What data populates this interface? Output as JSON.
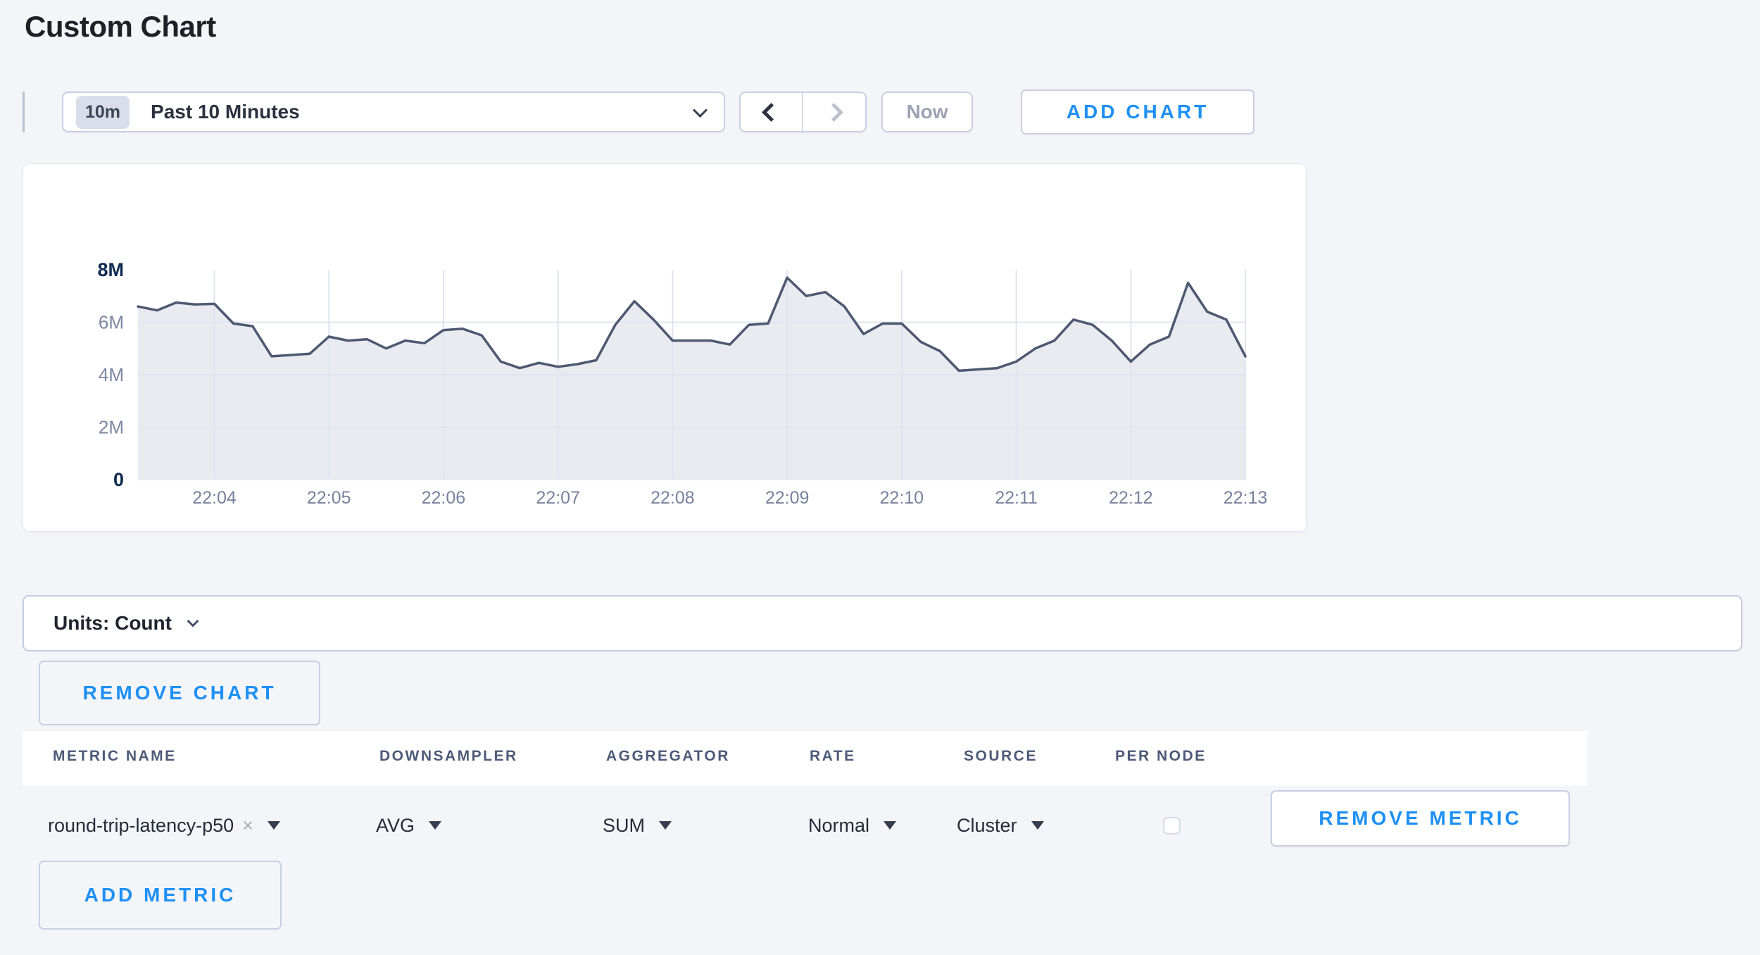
{
  "page": {
    "title": "Custom Chart"
  },
  "toolbar": {
    "time_window_badge": "10m",
    "time_window_label": "Past 10 Minutes",
    "now_label": "Now",
    "add_chart_label": "ADD CHART"
  },
  "chart_data": {
    "type": "area",
    "title": "",
    "xlabel": "",
    "ylabel": "",
    "unit": "Count",
    "ylim": [
      0,
      8000000
    ],
    "grid": true,
    "legend": "none",
    "x_labels": [
      "22:04",
      "22:05",
      "22:06",
      "22:07",
      "22:08",
      "22:09",
      "22:10",
      "22:11",
      "22:12",
      "22:13"
    ],
    "x_tick_indices": [
      4,
      10,
      16,
      22,
      28,
      34,
      40,
      46,
      52,
      58
    ],
    "y_ticks": [
      {
        "label": "0",
        "value": 0,
        "strong": true,
        "gridline": false
      },
      {
        "label": "2M",
        "value": 2,
        "strong": false,
        "gridline": true
      },
      {
        "label": "4M",
        "value": 4,
        "strong": false,
        "gridline": true
      },
      {
        "label": "6M",
        "value": 6,
        "strong": false,
        "gridline": true
      },
      {
        "label": "8M",
        "value": 8,
        "strong": true,
        "gridline": false
      }
    ],
    "series": [
      {
        "name": "round-trip-latency-p50",
        "values_millions": [
          6.6,
          6.45,
          6.75,
          6.68,
          6.7,
          5.95,
          5.85,
          4.7,
          4.75,
          4.8,
          5.45,
          5.3,
          5.35,
          5.0,
          5.3,
          5.2,
          5.7,
          5.75,
          5.5,
          4.5,
          4.25,
          4.45,
          4.3,
          4.4,
          4.55,
          5.9,
          6.8,
          6.1,
          5.3,
          5.3,
          5.3,
          5.15,
          5.9,
          5.95,
          7.7,
          7.0,
          7.15,
          6.6,
          5.55,
          5.95,
          5.95,
          5.25,
          4.9,
          4.15,
          4.2,
          4.25,
          4.5,
          5.0,
          5.3,
          6.1,
          5.9,
          5.3,
          4.5,
          5.15,
          5.45,
          7.5,
          6.4,
          6.1,
          4.7
        ]
      }
    ],
    "line_color": "#4d5971",
    "fill_color": "#e9ebf1",
    "grid_color": "#dfe4ef",
    "baseline_color": "#e8ebf3"
  },
  "units_bar": {
    "label": "Units: Count"
  },
  "chart_actions": {
    "remove_chart_label": "REMOVE CHART",
    "add_metric_label": "ADD METRIC"
  },
  "metrics_table": {
    "columns": [
      "METRIC NAME",
      "DOWNSAMPLER",
      "AGGREGATOR",
      "RATE",
      "SOURCE",
      "PER NODE"
    ],
    "rows": [
      {
        "metric_name": "round-trip-latency-p50",
        "remove_tag_symbol": "×",
        "downsampler": "AVG",
        "aggregator": "SUM",
        "rate": "Normal",
        "source": "Cluster",
        "per_node_checked": false,
        "remove_label": "REMOVE METRIC"
      }
    ]
  }
}
